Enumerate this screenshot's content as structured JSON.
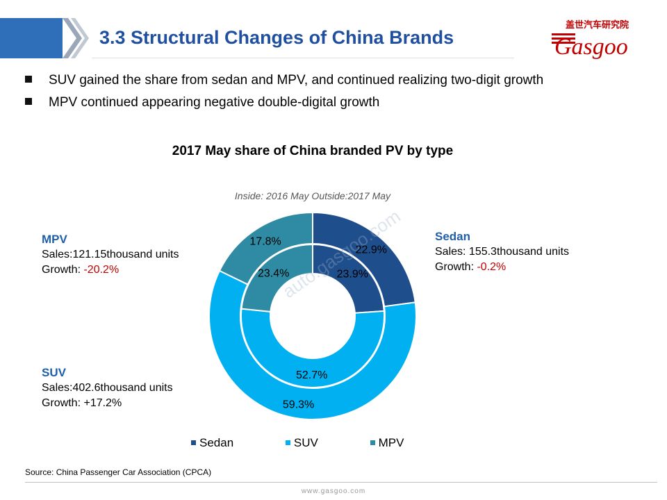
{
  "header": {
    "title": "3.3 Structural Changes of China Brands",
    "logo_cn": "盖世汽车研究院",
    "logo_en": "Gasgoo"
  },
  "bullets": [
    "SUV gained the share from sedan and MPV, and continued realizing two-digit growth",
    "MPV continued appearing negative double-digital growth"
  ],
  "chart_data": {
    "type": "pie",
    "subtype": "doughnut",
    "title": "2017 May share of China branded PV by type",
    "subtitle": "Inside: 2016 May Outside:2017 May",
    "categories": [
      "Sedan",
      "SUV",
      "MPV"
    ],
    "colors": [
      "#1f4e8c",
      "#00b0f0",
      "#2e8ba3"
    ],
    "series": [
      {
        "ring": "inner",
        "period": "2016 May",
        "values": [
          23.9,
          52.7,
          23.4
        ],
        "labels": [
          "23.9%",
          "52.7%",
          "23.4%"
        ]
      },
      {
        "ring": "outer",
        "period": "2017 May",
        "values": [
          22.9,
          59.3,
          17.8
        ],
        "labels": [
          "22.9%",
          "59.3%",
          "17.8%"
        ]
      }
    ],
    "legend": [
      "Sedan",
      "SUV",
      "MPV"
    ],
    "legend_position": "bottom",
    "callouts": {
      "sedan": {
        "name": "Sedan",
        "sales": "Sales: 155.3thousand units",
        "growth_label": "Growth: ",
        "growth": "-0.2%",
        "growth_color": "#c00000"
      },
      "mpv": {
        "name": "MPV",
        "sales": "Sales:121.15thousand units",
        "growth_label": "Growth: ",
        "growth": "-20.2%",
        "growth_color": "#c00000"
      },
      "suv": {
        "name": "SUV",
        "sales": "Sales:402.6thousand units",
        "growth_label": "Growth: ",
        "growth": "+17.2%",
        "growth_color": "#000000"
      }
    }
  },
  "watermark": "auto.gasgoo.com",
  "source": "Source: China Passenger Car Association (CPCA)",
  "footer_url": "www.gasgoo.com"
}
